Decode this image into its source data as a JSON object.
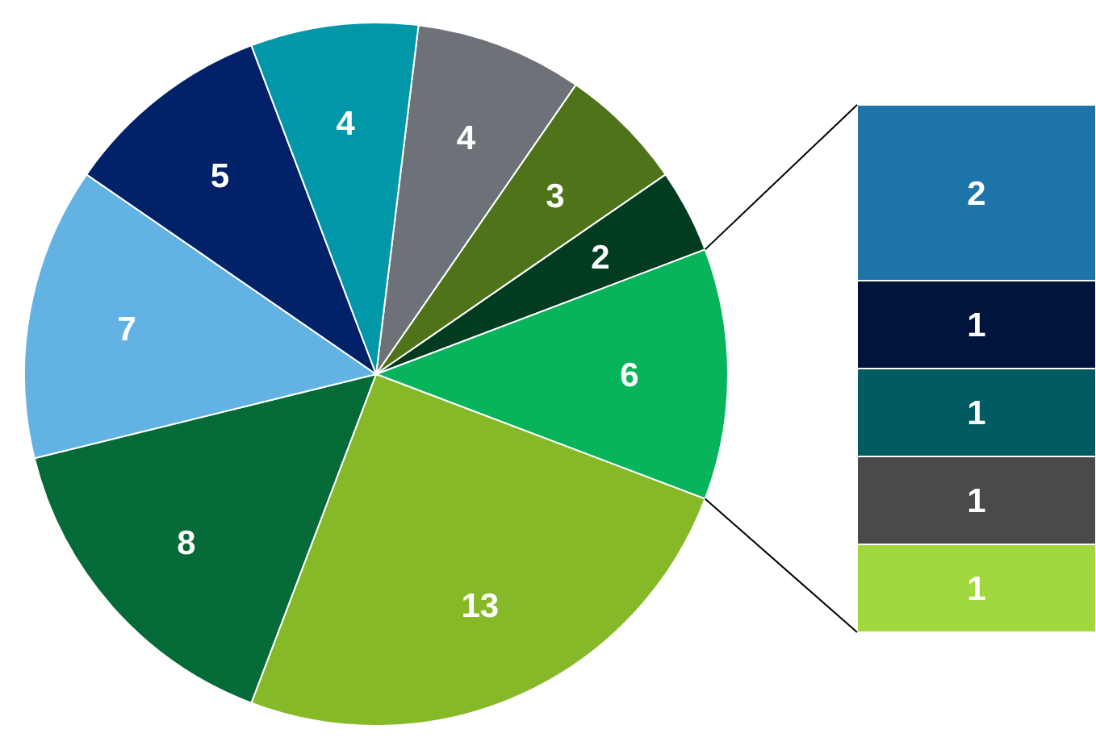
{
  "chart_data": [
    {
      "type": "pie",
      "categories": [
        null,
        null,
        null,
        null,
        null,
        null,
        null,
        null,
        null
      ],
      "values": [
        4,
        3,
        2,
        6,
        13,
        8,
        7,
        5,
        4
      ],
      "colors": [
        "#6d7278",
        "#4e7319",
        "#013b20",
        "#07b45b",
        "#86b927",
        "#046a38",
        "#62b3e4",
        "#012169",
        "#0097a9"
      ],
      "data_labels": true
    },
    {
      "type": "bar",
      "stacked": true,
      "categories": [
        null
      ],
      "series": [
        {
          "color": "#a0d83e",
          "values": [
            1
          ]
        },
        {
          "color": "#4a4a4c",
          "values": [
            1
          ]
        },
        {
          "color": "#005b62",
          "values": [
            1
          ]
        },
        {
          "color": "#00143c",
          "values": [
            1
          ]
        },
        {
          "color": "#1c74a8",
          "values": [
            2
          ]
        }
      ],
      "data_labels": true
    }
  ]
}
